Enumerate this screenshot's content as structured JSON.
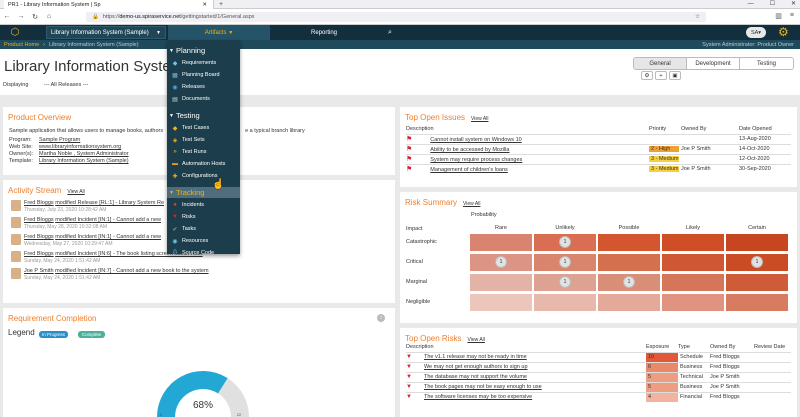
{
  "browser": {
    "tab_title": "PR1 - Library Information System | Sp",
    "url_host": "demo-us.spiraservice.net",
    "url_path": "/gettingstarted/1/General.aspx",
    "url_prefix": "https://"
  },
  "nav": {
    "project": "Library Information System (Sample)",
    "artifacts": "Artifacts",
    "reporting": "Reporting",
    "user_initials": "SA"
  },
  "breadcrumb": {
    "home": "Product Home",
    "product": "Library Information System (Sample)",
    "role": "System Administrator: Product Owner"
  },
  "page": {
    "title": "Library Information System (S",
    "displaying_label": "Displaying",
    "releases": "All Releases",
    "tabs": [
      "General",
      "Development",
      "Testing"
    ]
  },
  "product_overview": {
    "title": "Product Overview",
    "description": "Sample application that allows users to manage books, authors",
    "description_end": "e a typical branch library",
    "rows": [
      {
        "label": "Program:",
        "value": "Sample Program"
      },
      {
        "label": "Web Site:",
        "value": "www.libraryinformationsystem.org"
      },
      {
        "label": "Owner(s):",
        "value": "Martha Noble , System Administrator"
      },
      {
        "label": "Template:",
        "value": "Library Information System (Sample)"
      }
    ]
  },
  "activity_stream": {
    "title": "Activity Stream",
    "view_all": "View All",
    "items": [
      {
        "user": "Fred Bloggs",
        "text": "modified Release [RL:1] - Library System Re",
        "time": "Thursday, July 23, 2020 10:28:42 AM"
      },
      {
        "user": "Fred Bloggs",
        "text": "modified Incident [IN:1] - Cannot add a new",
        "time": "Thursday, May 28, 2020 10:32:08 AM"
      },
      {
        "user": "Fred Bloggs",
        "text": "modified Incident [IN:1] - Cannot add a new",
        "time": "Wednesday, May 27, 2020 10:29:47 AM"
      },
      {
        "user": "Fred Bloggs",
        "text": "modified Incident [IN:6] - The book listing screen doesn't sort",
        "time": "Sunday, May 24, 2020 1:51:42 AM"
      },
      {
        "user": "Joe P Smith",
        "text": "modified Incident [IN:7] - Cannot add a new book to the system",
        "time": "Sunday, May 24, 2020 1:51:42 AM"
      }
    ]
  },
  "requirement_completion": {
    "title": "Requirement Completion",
    "legend_label": "Legend",
    "legend": [
      "In Progress",
      "Complete"
    ],
    "percent": "68%",
    "percent_value": 68,
    "axis_min": "0",
    "axis_max": "22",
    "colors": {
      "in_progress": "#2a8fc8",
      "complete": "#4caf9a",
      "gauge": "#23a8d6",
      "track": "#e0e0e0"
    }
  },
  "top_issues": {
    "title": "Top Open Issues",
    "view_all": "View All",
    "columns": [
      "Description",
      "Priority",
      "Owned By",
      "Date Opened"
    ],
    "rows": [
      {
        "desc": "Cannot install system on Windows 10",
        "priority": "",
        "owner": "",
        "date": "13-Aug-2020"
      },
      {
        "desc": "Ability to be accessed by Mozilla",
        "priority": "2 - High",
        "owner": "Joe P Smith",
        "date": "14-Oct-2020"
      },
      {
        "desc": "System may require process changes",
        "priority": "3 - Medium",
        "owner": "",
        "date": "12-Oct-2020"
      },
      {
        "desc": "Management of children's loans",
        "priority": "3 - Medium",
        "owner": "Joe P Smith",
        "date": "30-Sep-2020"
      }
    ]
  },
  "risk_summary": {
    "title": "Risk Summary",
    "view_all": "View All",
    "probability_label": "Probability",
    "impact_label": "Impact",
    "columns": [
      "Rare",
      "Unlikely",
      "Possible",
      "Likely",
      "Certain"
    ],
    "rows": [
      "Catastrophic",
      "Critical",
      "Marginal",
      "Negligible"
    ],
    "counts": [
      [
        null,
        1,
        null,
        null,
        null
      ],
      [
        1,
        1,
        null,
        null,
        1
      ],
      [
        null,
        1,
        1,
        null,
        null
      ],
      [
        null,
        null,
        null,
        null,
        null
      ]
    ],
    "colors": [
      [
        "#d98470",
        "#d96e52",
        "#d4562f",
        "#cf4e26",
        "#c8461f"
      ],
      [
        "#dc9585",
        "#d9846c",
        "#d5704f",
        "#d05733",
        "#ca4c24"
      ],
      [
        "#e4b3a7",
        "#dda292",
        "#d98e77",
        "#d5765a",
        "#cf5c38"
      ],
      [
        "#ecc5bb",
        "#e8b8ac",
        "#e4a998",
        "#df9380",
        "#d77c60"
      ]
    ]
  },
  "top_risks": {
    "title": "Top Open Risks",
    "view_all": "View All",
    "columns": [
      "Description",
      "Exposure",
      "Type",
      "Owned By",
      "Review Date"
    ],
    "rows": [
      {
        "desc": "The v1.1 release may not be ready in time",
        "exposure": "10",
        "type": "Schedule",
        "owner": "Fred Bloggs",
        "date": ""
      },
      {
        "desc": "We may not get enough authors to sign up",
        "exposure": "6",
        "type": "Business",
        "owner": "Fred Bloggs",
        "date": ""
      },
      {
        "desc": "The database may not support the volume",
        "exposure": "5",
        "type": "Technical",
        "owner": "Joe P Smith",
        "date": ""
      },
      {
        "desc": "The book pages may not be easy enough to use",
        "exposure": "5",
        "type": "Business",
        "owner": "Joe P Smith",
        "date": ""
      },
      {
        "desc": "The software licenses may be too expensive",
        "exposure": "4",
        "type": "Financial",
        "owner": "Fred Bloggs",
        "date": ""
      }
    ]
  },
  "dropdown": {
    "sections": [
      {
        "label": "Planning",
        "items": [
          "Requirements",
          "Planning Board",
          "Releases",
          "Documents"
        ]
      },
      {
        "label": "Testing",
        "items": [
          "Test Cases",
          "Test Sets",
          "Test Runs",
          "Automation Hosts",
          "Configurations"
        ]
      },
      {
        "label": "Tracking",
        "items": [
          "Incidents",
          "Risks",
          "Tasks",
          "Resources",
          "Source Code"
        ]
      }
    ]
  }
}
